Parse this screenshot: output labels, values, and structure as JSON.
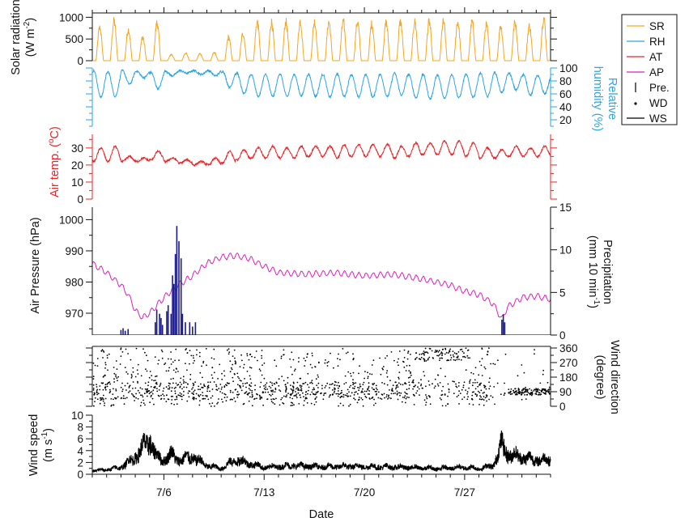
{
  "chart_data": {
    "type": "line",
    "title": "",
    "xlabel": "Date",
    "x_range_days": [
      0,
      32
    ],
    "x_ticks": [
      {
        "day": 5,
        "label": "7/6"
      },
      {
        "day": 12,
        "label": "7/13"
      },
      {
        "day": 19,
        "label": "7/20"
      },
      {
        "day": 26,
        "label": "7/27"
      }
    ],
    "legend": {
      "placement": "right",
      "entries": [
        {
          "label": "SR",
          "color": "#F5A623",
          "marker": "line"
        },
        {
          "label": "RH",
          "color": "#2EA5E0",
          "marker": "line"
        },
        {
          "label": "AT",
          "color": "#E8262B",
          "marker": "line"
        },
        {
          "label": "AP",
          "color": "#E01FBF",
          "marker": "line"
        },
        {
          "label": "Pre.",
          "color": "#000000",
          "marker": "bar"
        },
        {
          "label": "WD",
          "color": "#000000",
          "marker": "dot"
        },
        {
          "label": "WS",
          "color": "#000000",
          "marker": "line"
        }
      ]
    },
    "panels": [
      {
        "id": "solar",
        "ylabel": "Solar radiation (W m-2)",
        "ylabel_lines": [
          "Solar radiation",
          "(W m",
          "-2",
          ")"
        ],
        "ylim": [
          0,
          1100
        ],
        "ticks": [
          {
            "v": 0,
            "label": "0"
          },
          {
            "v": 500,
            "label": "500"
          },
          {
            "v": 1000,
            "label": "1000"
          }
        ],
        "series": [
          {
            "name": "SR",
            "color": "#F5A623",
            "kind": "diurnal",
            "daily_peaks": [
              850,
              1020,
              800,
              600,
              980,
              160,
              200,
              180,
              210,
              600,
              700,
              1000,
              1000,
              1000,
              1020,
              1000,
              1000,
              1000,
              1000,
              950,
              980,
              1000,
              1000,
              1000,
              1000,
              1000,
              1000,
              920,
              900,
              990,
              900,
              1100
            ]
          }
        ]
      },
      {
        "id": "rh",
        "ylabel": "Relative humidity (%)",
        "ylabel_lines": [
          "Relative",
          "humidity (%)"
        ],
        "ylim": [
          10,
          100
        ],
        "ticks": [
          {
            "v": 20,
            "label": "20"
          },
          {
            "v": 40,
            "label": "40"
          },
          {
            "v": 60,
            "label": "60"
          },
          {
            "v": 80,
            "label": "80"
          },
          {
            "v": 100,
            "label": "100"
          }
        ],
        "series": [
          {
            "name": "RH",
            "color": "#2EA5E0",
            "kind": "diurnal",
            "daily_high": [
              96,
              94,
              96,
              95,
              93,
              95,
              96,
              96,
              96,
              95,
              92,
              90,
              90,
              91,
              90,
              90,
              90,
              91,
              90,
              90,
              90,
              92,
              90,
              90,
              89,
              90,
              90,
              92,
              93,
              92,
              90,
              88
            ],
            "daily_low": [
              55,
              56,
              75,
              85,
              68,
              88,
              92,
              90,
              88,
              70,
              60,
              56,
              56,
              56,
              57,
              56,
              55,
              56,
              55,
              55,
              56,
              58,
              54,
              52,
              53,
              54,
              55,
              56,
              62,
              66,
              58,
              60
            ]
          }
        ]
      },
      {
        "id": "at",
        "ylabel": "Air temp. (oC)",
        "ylabel_lines": [
          "Air temp. (",
          "o",
          "C)"
        ],
        "ylim": [
          0,
          38
        ],
        "ticks": [
          {
            "v": 0,
            "label": "0"
          },
          {
            "v": 10,
            "label": "10"
          },
          {
            "v": 20,
            "label": "20"
          },
          {
            "v": 30,
            "label": "30"
          }
        ],
        "series": [
          {
            "name": "AT",
            "color": "#E8262B",
            "kind": "diurnal",
            "daily_high": [
              30,
              31,
              25,
              24,
              28,
              24,
              23,
              22,
              24,
              28,
              29,
              30,
              31,
              30,
              31,
              31,
              31,
              32,
              32,
              32,
              32,
              31,
              33,
              33,
              34,
              34,
              33,
              30,
              29,
              31,
              30,
              31
            ],
            "daily_low": [
              22,
              22,
              22,
              22,
              23,
              22,
              21,
              20,
              20,
              21,
              23,
              24,
              24,
              24,
              24,
              25,
              25,
              24,
              25,
              25,
              25,
              24,
              25,
              26,
              26,
              26,
              25,
              24,
              24,
              25,
              25,
              25
            ]
          }
        ]
      },
      {
        "id": "ap",
        "ylabel": "Air Pressure (hPa)",
        "ylim": [
          963,
          1004
        ],
        "ticks": [
          {
            "v": 970,
            "label": "970"
          },
          {
            "v": 980,
            "label": "980"
          },
          {
            "v": 990,
            "label": "990"
          },
          {
            "v": 1000,
            "label": "1000"
          }
        ],
        "series": [
          {
            "name": "AP",
            "color": "#E01FBF",
            "kind": "line",
            "x": [
              0,
              1,
              2,
              2.5,
              3,
              3.5,
              4,
              5,
              6,
              7,
              8,
              9,
              10,
              11,
              12,
              13,
              15,
              17,
              19,
              21,
              23,
              25,
              26,
              27,
              28,
              28.6,
              29,
              30,
              31,
              32
            ],
            "values": [
              986,
              983,
              979,
              976,
              971,
              968.5,
              970,
              975,
              979,
              982,
              986,
              988,
              988.5,
              987.5,
              985,
              983,
              982.5,
              983,
              982,
              982.5,
              981,
              979,
              977,
              976,
              973,
              968,
              972,
              975,
              975.5,
              974.5
            ]
          }
        ]
      },
      {
        "id": "precip",
        "ylabel": "Precipitation (mm 10 min-1)",
        "ylabel_lines": [
          "Precipitation",
          "(mm 10 min",
          "-1",
          ")"
        ],
        "ylim": [
          0,
          15
        ],
        "ticks": [
          {
            "v": 0,
            "label": "0"
          },
          {
            "v": 5,
            "label": "5"
          },
          {
            "v": 10,
            "label": "10"
          },
          {
            "v": 15,
            "label": "15"
          }
        ],
        "series": [
          {
            "name": "Pre.",
            "color": "#1A1A8C",
            "kind": "bars",
            "x": [
              2.0,
              2.15,
              2.3,
              2.5,
              4.4,
              4.5,
              4.7,
              4.8,
              4.9,
              5.2,
              5.3,
              5.5,
              5.6,
              5.7,
              5.8,
              5.9,
              6.05,
              6.2,
              6.3,
              6.5,
              6.8,
              7.0,
              7.2,
              28.6,
              28.7,
              28.8
            ],
            "values": [
              0.6,
              0.8,
              0.5,
              0.7,
              1.5,
              3.0,
              2.5,
              2.0,
              1.2,
              2.8,
              3.5,
              2.5,
              7.0,
              6.0,
              9.5,
              12.8,
              11.0,
              9.0,
              2.5,
              1.5,
              1.5,
              1.0,
              1.5,
              1.8,
              2.4,
              1.5
            ]
          }
        ]
      },
      {
        "id": "wd",
        "ylabel": "Wind direction (degree)",
        "ylabel_lines": [
          "Wind direction",
          "(degree)"
        ],
        "ylim": [
          0,
          370
        ],
        "ticks": [
          {
            "v": 0,
            "label": "0"
          },
          {
            "v": 90,
            "label": "90"
          },
          {
            "v": 180,
            "label": "180"
          },
          {
            "v": 270,
            "label": "270"
          },
          {
            "v": 360,
            "label": "360"
          }
        ],
        "series": [
          {
            "name": "WD",
            "color": "#000000",
            "kind": "scatter",
            "range": [
              0,
              360
            ]
          }
        ]
      },
      {
        "id": "ws",
        "ylabel": "Wind speed (m s-1)",
        "ylabel_lines": [
          "Wind speed",
          "(m s",
          "-1",
          ")"
        ],
        "ylim": [
          0,
          10
        ],
        "ticks": [
          {
            "v": 0,
            "label": "0"
          },
          {
            "v": 2,
            "label": "2"
          },
          {
            "v": 4,
            "label": "4"
          },
          {
            "v": 6,
            "label": "6"
          },
          {
            "v": 8,
            "label": "8"
          },
          {
            "v": 10,
            "label": "10"
          }
        ],
        "series": [
          {
            "name": "WS",
            "color": "#000000",
            "kind": "line",
            "x": [
              0,
              1,
              2,
              3,
              3.5,
              4,
              4.5,
              5,
              5.5,
              6,
              7,
              8,
              9,
              10,
              12,
              14,
              16,
              18,
              20,
              22,
              24,
              26,
              27,
              28,
              28.6,
              29,
              30,
              31,
              32
            ],
            "values": [
              0.6,
              0.8,
              1.2,
              3.0,
              4.5,
              6.0,
              3.0,
              2.5,
              3.5,
              2.5,
              3.0,
              1.5,
              1.0,
              2.5,
              1.2,
              1.5,
              1.3,
              1.4,
              1.3,
              1.2,
              1.0,
              1.2,
              1.0,
              1.5,
              5.2,
              3.5,
              3.0,
              2.5,
              2.5
            ]
          }
        ]
      }
    ]
  }
}
